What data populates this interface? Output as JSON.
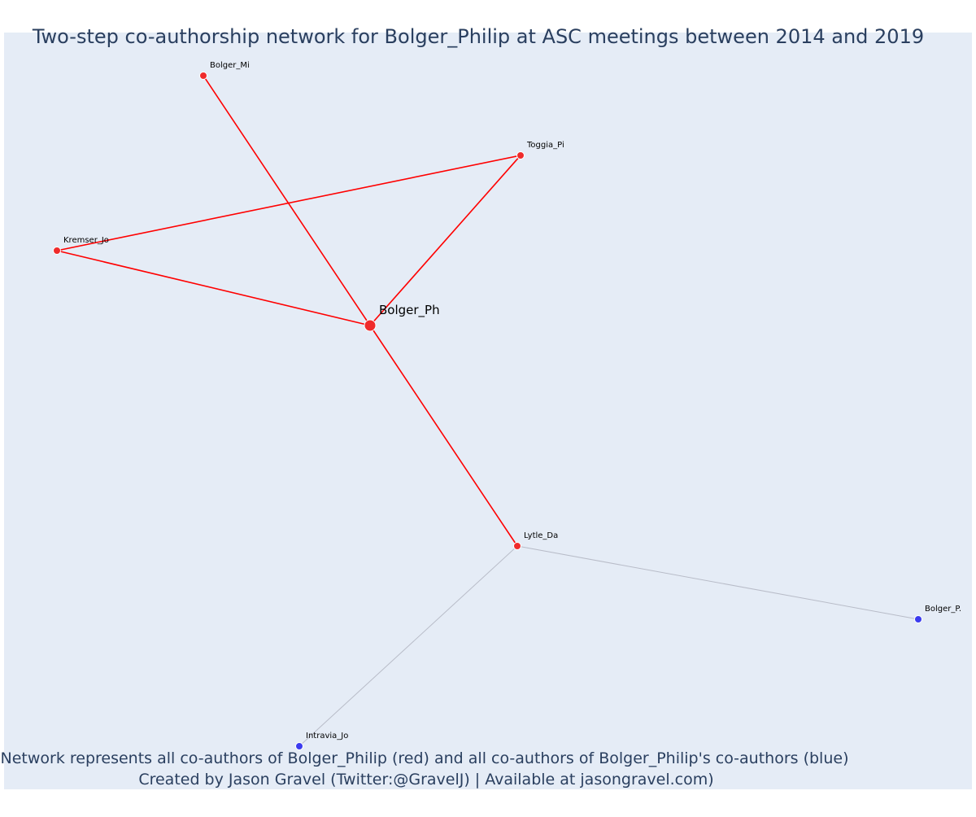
{
  "title": "Two-step co-authorship network for Bolger_Philip at ASC meetings between 2014 and 2019",
  "caption": {
    "line1": "Network represents all co-authors of Bolger_Philip (red) and all co-authors of Bolger_Philip's co-authors (blue)",
    "line2": "Created by Jason Gravel (Twitter:@GravelJ) | Available at jasongravel.com)"
  },
  "colors": {
    "background": "#e5ecf6",
    "first_step": "#ef2b2b",
    "second_step": "#3b3bef",
    "first_step_edge": "#ff0000",
    "second_step_edge": "#b8bcc8",
    "text": "#2a3f5f"
  },
  "chart_data": {
    "type": "network",
    "nodes": [
      {
        "id": "Bolger_Ph",
        "label": "Bolger_Ph",
        "group": "focal",
        "x": 0.455,
        "y": 0.4
      },
      {
        "id": "Bolger_Mi",
        "label": "Bolger_Mi",
        "group": "co-author",
        "x": 0.25,
        "y": 0.093
      },
      {
        "id": "Toggia_Pi",
        "label": "Toggia_Pi",
        "group": "co-author",
        "x": 0.64,
        "y": 0.191
      },
      {
        "id": "Kremser_Jo",
        "label": "Kremser_Jo",
        "group": "co-author",
        "x": 0.07,
        "y": 0.308
      },
      {
        "id": "Lytle_Da",
        "label": "Lytle_Da",
        "group": "co-author",
        "x": 0.636,
        "y": 0.671
      },
      {
        "id": "Bolger_P.",
        "label": "Bolger_P.",
        "group": "co-author-of-co-author",
        "x": 1.129,
        "y": 0.761
      },
      {
        "id": "Intravia_Jo",
        "label": "Intravia_Jo",
        "group": "co-author-of-co-author",
        "x": 0.368,
        "y": 0.917
      }
    ],
    "edges": [
      {
        "source": "Bolger_Ph",
        "target": "Bolger_Mi",
        "type": "first-step"
      },
      {
        "source": "Bolger_Ph",
        "target": "Toggia_Pi",
        "type": "first-step"
      },
      {
        "source": "Bolger_Ph",
        "target": "Kremser_Jo",
        "type": "first-step"
      },
      {
        "source": "Bolger_Ph",
        "target": "Lytle_Da",
        "type": "first-step"
      },
      {
        "source": "Kremser_Jo",
        "target": "Toggia_Pi",
        "type": "first-step"
      },
      {
        "source": "Lytle_Da",
        "target": "Bolger_P.",
        "type": "second-step"
      },
      {
        "source": "Lytle_Da",
        "target": "Intravia_Jo",
        "type": "second-step"
      }
    ]
  }
}
